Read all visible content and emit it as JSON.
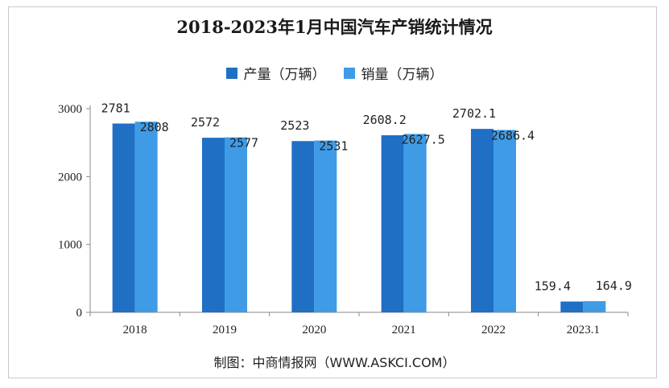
{
  "chart_data": {
    "type": "bar",
    "title": "2018-2023年1月中国汽车产销统计情况",
    "categories": [
      "2018",
      "2019",
      "2020",
      "2021",
      "2022",
      "2023.1"
    ],
    "series": [
      {
        "name": "产量（万辆）",
        "color": "#1f6fc5",
        "values": [
          2781,
          2572,
          2523,
          2608.2,
          2702.1,
          159.4
        ],
        "labels": [
          "2781",
          "2572",
          "2523",
          "2608.2",
          "2702.1",
          "159.4"
        ]
      },
      {
        "name": "销量（万辆）",
        "color": "#3f9be6",
        "values": [
          2808,
          2577,
          2531,
          2627.5,
          2686.4,
          164.9
        ],
        "labels": [
          "2808",
          "2577",
          "2531",
          "2627.5",
          "2686.4",
          "164.9"
        ]
      }
    ],
    "ylim": [
      0,
      3000
    ],
    "yticks": [
      0,
      1000,
      2000,
      3000
    ],
    "xlabel": "",
    "ylabel": "",
    "legend": "top-center",
    "source": "制图：中商情报网（WWW.ASKCI.COM）"
  }
}
